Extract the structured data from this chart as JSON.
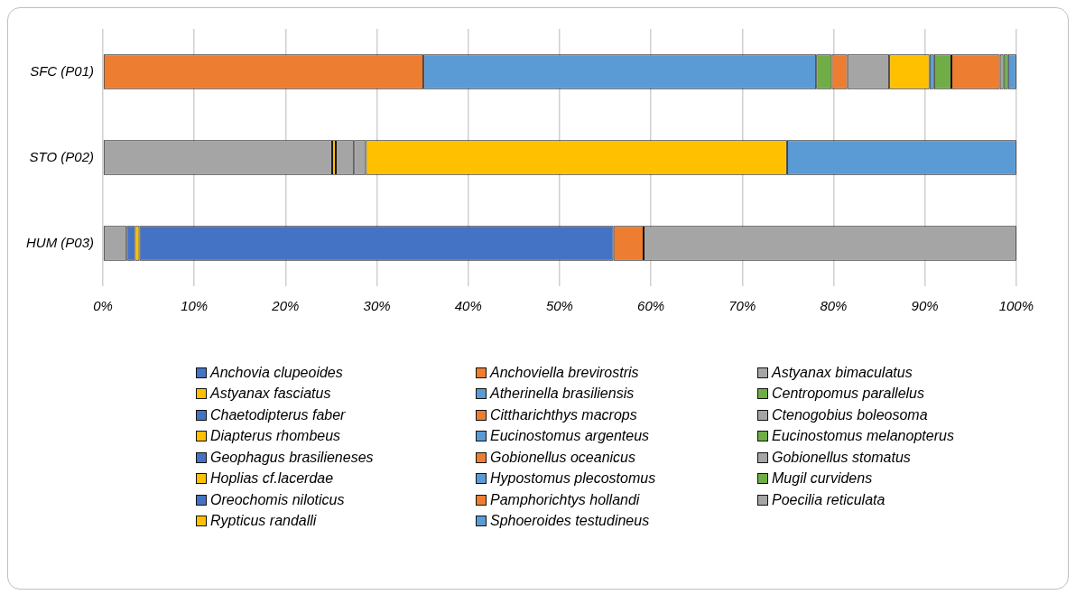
{
  "chart_data": {
    "type": "bar",
    "orientation": "horizontal",
    "stacked": true,
    "categories": [
      "SFC (P01)",
      "STO (P02)",
      "HUM (P03)"
    ],
    "xlim": [
      0,
      100
    ],
    "xticks": [
      {
        "value": 0,
        "label": "0%"
      },
      {
        "value": 10,
        "label": "10%"
      },
      {
        "value": 20,
        "label": "20%"
      },
      {
        "value": 30,
        "label": "30%"
      },
      {
        "value": 40,
        "label": "40%"
      },
      {
        "value": 50,
        "label": "50%"
      },
      {
        "value": 60,
        "label": "60%"
      },
      {
        "value": 70,
        "label": "70%"
      },
      {
        "value": 80,
        "label": "80%"
      },
      {
        "value": 90,
        "label": "90%"
      },
      {
        "value": 100,
        "label": "100%"
      }
    ],
    "grid": "x",
    "legend": "bottom",
    "series": [
      {
        "name": "Anchovia clupeoides",
        "color": "#4472c4",
        "values": [
          null,
          null,
          null
        ]
      },
      {
        "name": "Anchoviella brevirostris",
        "color": "#ed7d31",
        "values": [
          35.1,
          null,
          null
        ]
      },
      {
        "name": "Astyanax bimaculatus",
        "color": "#a5a5a5",
        "values": [
          null,
          25.1,
          2.6
        ]
      },
      {
        "name": "Astyanax fasciatus",
        "color": "#ffc000",
        "values": [
          null,
          0.4,
          null
        ]
      },
      {
        "name": "Atherinella brasiliensis",
        "color": "#5b9bd5",
        "values": [
          43.0,
          null,
          null
        ]
      },
      {
        "name": "Centropomus parallelus",
        "color": "#70ad47",
        "values": [
          1.7,
          null,
          null
        ]
      },
      {
        "name": "Chaetodipterus faber",
        "color": "#4472c4",
        "values": [
          null,
          null,
          null
        ]
      },
      {
        "name": "Cittharichthys macrops",
        "color": "#ed7d31",
        "values": [
          1.7,
          null,
          null
        ]
      },
      {
        "name": "Ctenogobius boleosoma",
        "color": "#a5a5a5",
        "values": [
          4.6,
          2.0,
          null
        ]
      },
      {
        "name": "Diapterus rhombeus",
        "color": "#ffc000",
        "values": [
          4.4,
          null,
          null
        ]
      },
      {
        "name": "Eucinostomus argenteus",
        "color": "#5b9bd5",
        "values": [
          0.5,
          null,
          null
        ]
      },
      {
        "name": "Eucinostomus melanopterus",
        "color": "#70ad47",
        "values": [
          1.9,
          null,
          null
        ]
      },
      {
        "name": "Geophagus brasilieneses",
        "color": "#4472c4",
        "values": [
          null,
          null,
          0.9
        ]
      },
      {
        "name": "Gobionellus oceanicus",
        "color": "#ed7d31",
        "values": [
          5.3,
          null,
          null
        ]
      },
      {
        "name": "Gobionellus stomatus",
        "color": "#a5a5a5",
        "values": [
          0.4,
          1.3,
          null
        ]
      },
      {
        "name": "Hoplias cf.lacerdae",
        "color": "#ffc000",
        "values": [
          null,
          46.1,
          0.5
        ]
      },
      {
        "name": "Hypostomus plecostomus",
        "color": "#5b9bd5",
        "values": [
          null,
          25.1,
          null
        ]
      },
      {
        "name": "Mugil curvidens",
        "color": "#70ad47",
        "values": [
          0.5,
          null,
          null
        ]
      },
      {
        "name": "Oreochomis niloticus",
        "color": "#4472c4",
        "values": [
          null,
          null,
          51.9
        ]
      },
      {
        "name": "Pamphorichtys hollandi",
        "color": "#ed7d31",
        "values": [
          null,
          null,
          3.3
        ]
      },
      {
        "name": "Poecilia reticulata",
        "color": "#a5a5a5",
        "values": [
          null,
          null,
          40.8
        ]
      },
      {
        "name": "Rypticus randalli",
        "color": "#ffc000",
        "values": [
          null,
          null,
          null
        ]
      },
      {
        "name": "Sphoeroides testudineus",
        "color": "#5b9bd5",
        "values": [
          0.9,
          null,
          null
        ]
      }
    ]
  }
}
